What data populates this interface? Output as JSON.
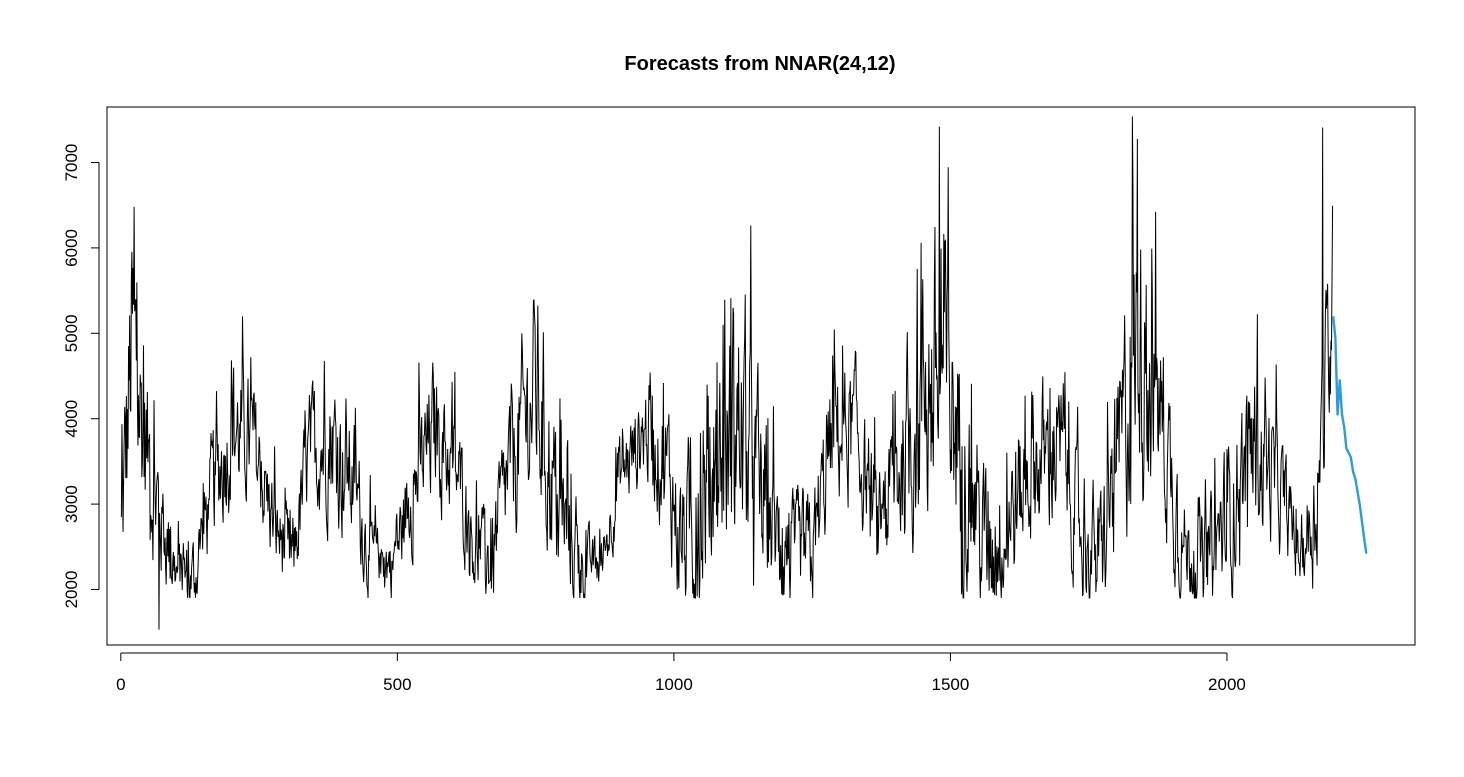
{
  "chart_data": {
    "type": "line",
    "title": "Forecasts from NNAR(24,12)",
    "xlabel": "",
    "ylabel": "",
    "xlim": [
      -25,
      2340
    ],
    "ylim": [
      1350,
      7650
    ],
    "x_ticks": [
      0,
      500,
      1000,
      1500,
      2000
    ],
    "y_ticks": [
      2000,
      3000,
      4000,
      5000,
      6000,
      7000
    ],
    "grid": false,
    "legend": "none",
    "series": [
      {
        "role": "observed",
        "color": "#000000",
        "x_start": 1,
        "x_end": 2191,
        "baseline_anchors": [
          [
            0,
            2500
          ],
          [
            20,
            4800
          ],
          [
            45,
            3700
          ],
          [
            70,
            2900
          ],
          [
            100,
            2200
          ],
          [
            130,
            2100
          ],
          [
            160,
            3000
          ],
          [
            200,
            3900
          ],
          [
            240,
            3700
          ],
          [
            280,
            2700
          ],
          [
            310,
            2300
          ],
          [
            340,
            3600
          ],
          [
            380,
            3800
          ],
          [
            420,
            3300
          ],
          [
            450,
            2400
          ],
          [
            490,
            2300
          ],
          [
            530,
            3200
          ],
          [
            570,
            3900
          ],
          [
            610,
            3300
          ],
          [
            640,
            2500
          ],
          [
            670,
            2300
          ],
          [
            700,
            3300
          ],
          [
            750,
            4400
          ],
          [
            790,
            2900
          ],
          [
            830,
            2300
          ],
          [
            870,
            2300
          ],
          [
            900,
            3300
          ],
          [
            950,
            3900
          ],
          [
            990,
            3400
          ],
          [
            1010,
            2600
          ],
          [
            1040,
            2700
          ],
          [
            1080,
            3500
          ],
          [
            1120,
            3900
          ],
          [
            1160,
            3000
          ],
          [
            1200,
            2400
          ],
          [
            1250,
            2400
          ],
          [
            1290,
            3900
          ],
          [
            1330,
            3800
          ],
          [
            1370,
            2600
          ],
          [
            1400,
            3300
          ],
          [
            1450,
            4300
          ],
          [
            1490,
            4500
          ],
          [
            1530,
            3300
          ],
          [
            1560,
            2500
          ],
          [
            1600,
            2700
          ],
          [
            1650,
            3500
          ],
          [
            1700,
            3600
          ],
          [
            1740,
            2500
          ],
          [
            1770,
            2300
          ],
          [
            1800,
            3300
          ],
          [
            1840,
            5000
          ],
          [
            1880,
            4100
          ],
          [
            1920,
            2500
          ],
          [
            1960,
            2300
          ],
          [
            2000,
            2800
          ],
          [
            2050,
            3700
          ],
          [
            2100,
            3100
          ],
          [
            2130,
            2400
          ],
          [
            2160,
            2900
          ],
          [
            2191,
            5400
          ]
        ],
        "amplitude_anchors": [
          [
            0,
            900
          ],
          [
            20,
            1600
          ],
          [
            45,
            1000
          ],
          [
            100,
            350
          ],
          [
            200,
            800
          ],
          [
            300,
            450
          ],
          [
            400,
            900
          ],
          [
            470,
            300
          ],
          [
            560,
            800
          ],
          [
            650,
            450
          ],
          [
            760,
            1200
          ],
          [
            850,
            300
          ],
          [
            950,
            600
          ],
          [
            1050,
            1000
          ],
          [
            1120,
            1500
          ],
          [
            1200,
            550
          ],
          [
            1300,
            800
          ],
          [
            1380,
            600
          ],
          [
            1470,
            1700
          ],
          [
            1560,
            900
          ],
          [
            1660,
            850
          ],
          [
            1760,
            600
          ],
          [
            1840,
            1600
          ],
          [
            1930,
            500
          ],
          [
            2050,
            1000
          ],
          [
            2130,
            350
          ],
          [
            2191,
            1200
          ]
        ],
        "peaks": [
          [
            24,
            6480
          ],
          [
            69,
            1530
          ],
          [
            1480,
            7420
          ],
          [
            1829,
            7540
          ],
          [
            2173,
            7410
          ]
        ]
      },
      {
        "role": "forecast",
        "color": "#2B9BE0",
        "x": [
          2192,
          2196,
          2200,
          2204,
          2208,
          2212,
          2216,
          2220,
          2224,
          2228,
          2232,
          2236,
          2240,
          2244,
          2248,
          2252
        ],
        "values": [
          5200,
          4950,
          4050,
          4450,
          4050,
          3900,
          3650,
          3600,
          3550,
          3380,
          3300,
          3150,
          3000,
          2800,
          2600,
          2420
        ]
      }
    ]
  }
}
